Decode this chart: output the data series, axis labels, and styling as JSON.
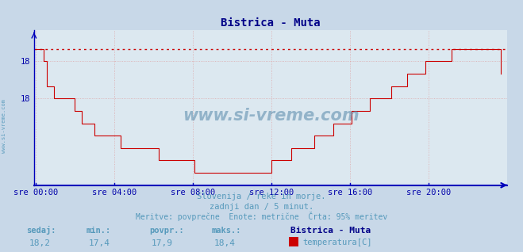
{
  "title": "Bistrica - Muta",
  "bg_color": "#c8d8e8",
  "plot_bg_color": "#dce8f0",
  "line_color": "#cc0000",
  "dotted_line_color": "#cc0000",
  "grid_color": "#dd9999",
  "axis_color": "#0000bb",
  "text_color": "#5599bb",
  "label_color": "#0000aa",
  "watermark": "www.si-vreme.com",
  "subtitle1": "Slovenija / reke in morje.",
  "subtitle2": "zadnji dan / 5 minut.",
  "subtitle3": "Meritve: povprečne  Enote: metrične  Črta: 95% meritev",
  "stat_labels": [
    "sedaj:",
    "min.:",
    "povpr.:",
    "maks.:"
  ],
  "stat_values": [
    "18,2",
    "17,4",
    "17,9",
    "18,4"
  ],
  "legend_title": "Bistrica - Muta",
  "legend_label": "temperatura[C]",
  "legend_color": "#cc0000",
  "x_tick_labels": [
    "sre 00:00",
    "sre 04:00",
    "sre 08:00",
    "sre 12:00",
    "sre 16:00",
    "sre 20:00"
  ],
  "x_tick_positions": [
    0,
    48,
    96,
    144,
    192,
    240
  ],
  "ylim": [
    17.3,
    18.55
  ],
  "ytick_values": [
    18.0,
    18.3
  ],
  "ytick_labels": [
    "18",
    "18"
  ],
  "max_value": 18.4,
  "num_points": 289,
  "temperature_data": [
    18.4,
    18.4,
    18.4,
    18.4,
    18.4,
    18.3,
    18.3,
    18.1,
    18.1,
    18.1,
    18.1,
    18.0,
    18.0,
    18.0,
    18.0,
    18.0,
    18.0,
    18.0,
    18.0,
    18.0,
    18.0,
    18.0,
    18.0,
    18.0,
    17.9,
    17.9,
    17.9,
    17.9,
    17.8,
    17.8,
    17.8,
    17.8,
    17.8,
    17.8,
    17.8,
    17.8,
    17.7,
    17.7,
    17.7,
    17.7,
    17.7,
    17.7,
    17.7,
    17.7,
    17.7,
    17.7,
    17.7,
    17.7,
    17.7,
    17.7,
    17.7,
    17.7,
    17.6,
    17.6,
    17.6,
    17.6,
    17.6,
    17.6,
    17.6,
    17.6,
    17.6,
    17.6,
    17.6,
    17.6,
    17.6,
    17.6,
    17.6,
    17.6,
    17.6,
    17.6,
    17.6,
    17.6,
    17.6,
    17.6,
    17.6,
    17.5,
    17.5,
    17.5,
    17.5,
    17.5,
    17.5,
    17.5,
    17.5,
    17.5,
    17.5,
    17.5,
    17.5,
    17.5,
    17.5,
    17.5,
    17.5,
    17.5,
    17.5,
    17.5,
    17.5,
    17.5,
    17.5,
    17.4,
    17.4,
    17.4,
    17.4,
    17.4,
    17.4,
    17.4,
    17.4,
    17.4,
    17.4,
    17.4,
    17.4,
    17.4,
    17.4,
    17.4,
    17.4,
    17.4,
    17.4,
    17.4,
    17.4,
    17.4,
    17.4,
    17.4,
    17.4,
    17.4,
    17.4,
    17.4,
    17.4,
    17.4,
    17.4,
    17.4,
    17.4,
    17.4,
    17.4,
    17.4,
    17.4,
    17.4,
    17.4,
    17.4,
    17.4,
    17.4,
    17.4,
    17.4,
    17.4,
    17.4,
    17.4,
    17.4,
    17.5,
    17.5,
    17.5,
    17.5,
    17.5,
    17.5,
    17.5,
    17.5,
    17.5,
    17.5,
    17.5,
    17.5,
    17.6,
    17.6,
    17.6,
    17.6,
    17.6,
    17.6,
    17.6,
    17.6,
    17.6,
    17.6,
    17.6,
    17.6,
    17.6,
    17.6,
    17.7,
    17.7,
    17.7,
    17.7,
    17.7,
    17.7,
    17.7,
    17.7,
    17.7,
    17.7,
    17.7,
    17.7,
    17.8,
    17.8,
    17.8,
    17.8,
    17.8,
    17.8,
    17.8,
    17.8,
    17.8,
    17.8,
    17.8,
    17.9,
    17.9,
    17.9,
    17.9,
    17.9,
    17.9,
    17.9,
    17.9,
    17.9,
    17.9,
    17.9,
    18.0,
    18.0,
    18.0,
    18.0,
    18.0,
    18.0,
    18.0,
    18.0,
    18.0,
    18.0,
    18.0,
    18.0,
    18.0,
    18.1,
    18.1,
    18.1,
    18.1,
    18.1,
    18.1,
    18.1,
    18.1,
    18.1,
    18.1,
    18.2,
    18.2,
    18.2,
    18.2,
    18.2,
    18.2,
    18.2,
    18.2,
    18.2,
    18.2,
    18.2,
    18.3,
    18.3,
    18.3,
    18.3,
    18.3,
    18.3,
    18.3,
    18.3,
    18.3,
    18.3,
    18.3,
    18.3,
    18.3,
    18.3,
    18.3,
    18.3,
    18.4,
    18.4,
    18.4,
    18.4,
    18.4,
    18.4,
    18.4,
    18.4,
    18.4,
    18.4,
    18.4,
    18.4,
    18.4,
    18.4,
    18.4,
    18.4,
    18.4,
    18.4,
    18.4,
    18.4,
    18.4,
    18.4,
    18.4,
    18.4,
    18.4,
    18.4,
    18.4,
    18.4,
    18.4,
    18.4,
    18.2
  ]
}
